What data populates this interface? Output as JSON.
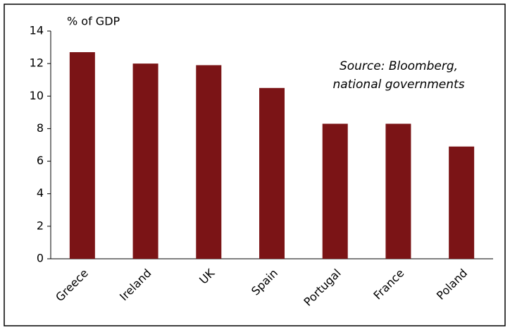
{
  "chart_data": {
    "type": "bar",
    "y_label": "% of GDP",
    "annotation": [
      "Source: Bloomberg,",
      "national governments"
    ],
    "categories": [
      "Greece",
      "Ireland",
      "UK",
      "Spain",
      "Portugal",
      "France",
      "Poland"
    ],
    "values": [
      12.7,
      12.0,
      11.9,
      10.5,
      8.3,
      8.3,
      6.9
    ],
    "color": "#7b1416",
    "ylim": [
      0,
      14
    ],
    "yticks": [
      0,
      2,
      4,
      6,
      8,
      10,
      12,
      14
    ],
    "grid": false
  }
}
